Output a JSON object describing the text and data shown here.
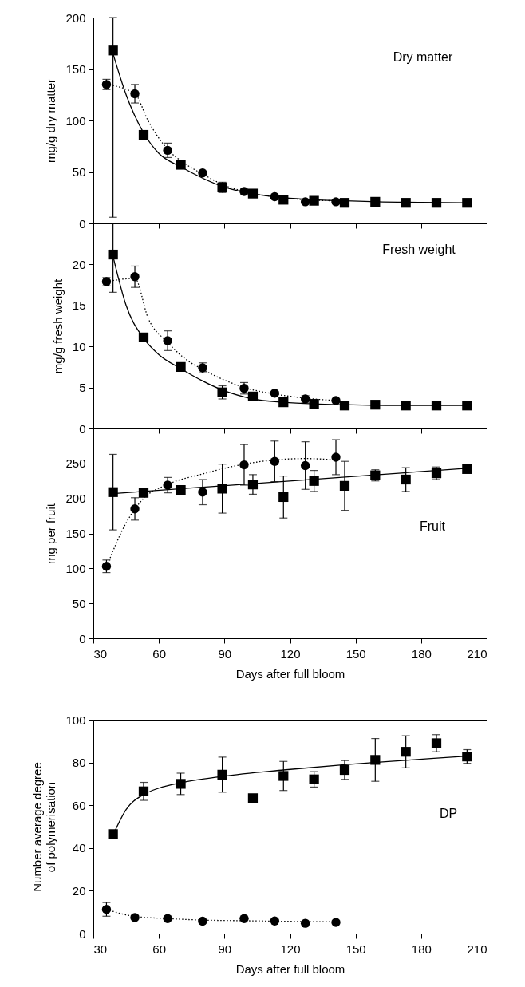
{
  "chart_data": [
    {
      "type": "scatter",
      "ylabel": "mg/g dry matter",
      "annotations": [
        "Dry matter"
      ],
      "xlim": [
        30,
        210
      ],
      "xticks": [
        30,
        60,
        90,
        120,
        150,
        180,
        210
      ],
      "ylim": [
        0,
        200
      ],
      "yticks": [
        0,
        50,
        100,
        150,
        200
      ],
      "tick_labels": "y",
      "grid": false,
      "series": [
        {
          "type": "line",
          "color": "#000000",
          "line_style": "dotted",
          "marker": "none",
          "x": [
            36,
            49,
            55,
            64,
            72,
            80,
            90,
            99,
            113,
            127,
            141
          ],
          "values": [
            135,
            126,
            100,
            72,
            58,
            48,
            37,
            31,
            26,
            23,
            22
          ]
        },
        {
          "type": "line",
          "color": "#000000",
          "line_style": "solid",
          "marker": "none",
          "x": [
            39,
            45,
            53,
            60,
            70,
            80,
            89,
            100,
            117,
            131,
            145,
            160,
            180,
            201
          ],
          "values": [
            165,
            125,
            88,
            68,
            55,
            44,
            36,
            30,
            25,
            23,
            22,
            21,
            20.5,
            20
          ]
        },
        {
          "type": "scatter",
          "color": "#000000",
          "marker": "circle",
          "x": [
            36,
            49,
            64,
            80,
            99,
            113,
            127,
            141
          ],
          "values": [
            135,
            126,
            71,
            49,
            31,
            26,
            21,
            21
          ],
          "errors": [
            5,
            9,
            7,
            null,
            3,
            null,
            null,
            null
          ]
        },
        {
          "type": "scatter",
          "color": "#000000",
          "marker": "square",
          "x": [
            39,
            53,
            70,
            89,
            103,
            117,
            131,
            145,
            159,
            173,
            187,
            201
          ],
          "values": [
            168,
            86,
            57,
            35,
            29,
            23,
            22,
            20,
            21,
            20,
            20,
            20
          ],
          "errors": [
            [
              6,
              200
            ],
            null,
            null,
            5,
            null,
            null,
            null,
            null,
            null,
            null,
            null,
            null
          ]
        }
      ]
    },
    {
      "type": "scatter",
      "ylabel": "mg/g fresh weight",
      "annotations": [
        "Fresh weight"
      ],
      "xlim": [
        30,
        210
      ],
      "xticks": [
        30,
        60,
        90,
        120,
        150,
        180,
        210
      ],
      "ylim": [
        0,
        25
      ],
      "yticks": [
        0,
        5,
        10,
        15,
        20
      ],
      "tick_labels": "y",
      "grid": false,
      "series": [
        {
          "type": "line",
          "color": "#000000",
          "line_style": "dotted",
          "marker": "none",
          "x": [
            36,
            49,
            55,
            64,
            72,
            80,
            90,
            99,
            113,
            127,
            141
          ],
          "values": [
            17.9,
            18.3,
            13.5,
            10.5,
            8.5,
            7.2,
            5.9,
            5.0,
            4.2,
            3.7,
            3.4
          ]
        },
        {
          "type": "line",
          "color": "#000000",
          "line_style": "solid",
          "marker": "none",
          "x": [
            39,
            45,
            53,
            60,
            70,
            80,
            89,
            103,
            117,
            131,
            145,
            173,
            201
          ],
          "values": [
            21,
            15,
            11,
            9,
            7.3,
            5.8,
            4.7,
            3.6,
            3.2,
            3.0,
            2.9,
            2.8,
            2.8
          ]
        },
        {
          "type": "scatter",
          "color": "#000000",
          "marker": "circle",
          "x": [
            36,
            49,
            64,
            80,
            99,
            113,
            127,
            141
          ],
          "values": [
            17.9,
            18.5,
            10.7,
            7.4,
            4.9,
            4.3,
            3.6,
            3.4
          ],
          "errors": [
            0.5,
            1.3,
            1.2,
            0.6,
            0.7,
            null,
            0.4,
            null
          ]
        },
        {
          "type": "scatter",
          "color": "#000000",
          "marker": "square",
          "x": [
            39,
            53,
            70,
            89,
            103,
            117,
            131,
            145,
            159,
            173,
            187,
            201
          ],
          "values": [
            21.2,
            11.1,
            7.5,
            4.4,
            3.9,
            3.2,
            3.0,
            2.8,
            2.9,
            2.8,
            2.8,
            2.8
          ],
          "errors": [
            [
              16.6,
              25
            ],
            null,
            null,
            0.8,
            null,
            null,
            null,
            null,
            null,
            null,
            null,
            null
          ]
        }
      ]
    },
    {
      "type": "scatter",
      "xlabel": "Days after full bloom",
      "ylabel": "mg per fruit",
      "annotations": [
        "Fruit"
      ],
      "xlim": [
        30,
        210
      ],
      "xticks": [
        30,
        60,
        90,
        120,
        150,
        180,
        210
      ],
      "ylim": [
        0,
        300
      ],
      "yticks": [
        0,
        50,
        100,
        150,
        200,
        250
      ],
      "grid": false,
      "series": [
        {
          "type": "line",
          "color": "#000000",
          "line_style": "dotted",
          "marker": "none",
          "x": [
            36,
            45,
            53,
            64,
            80,
            99,
            113,
            127,
            141
          ],
          "values": [
            102,
            165,
            200,
            220,
            235,
            249,
            255,
            257,
            255
          ]
        },
        {
          "type": "line",
          "color": "#000000",
          "line_style": "solid",
          "marker": "none",
          "x": [
            39,
            201
          ],
          "values": [
            207,
            243
          ]
        },
        {
          "type": "scatter",
          "color": "#000000",
          "marker": "circle",
          "x": [
            36,
            49,
            64,
            80,
            99,
            113,
            127,
            141
          ],
          "values": [
            103,
            185,
            219,
            209,
            248,
            253,
            247,
            259
          ],
          "errors": [
            9,
            16,
            11,
            18,
            29,
            29,
            34,
            25
          ]
        },
        {
          "type": "scatter",
          "color": "#000000",
          "marker": "square",
          "x": [
            39,
            53,
            70,
            89,
            103,
            117,
            131,
            145,
            159,
            173,
            187,
            201
          ],
          "values": [
            209,
            208,
            212,
            214,
            220,
            202,
            225,
            218,
            233,
            227,
            236,
            242
          ],
          "errors": [
            54,
            5,
            null,
            35,
            14,
            30,
            15,
            35,
            8,
            17,
            9,
            5
          ]
        }
      ]
    },
    {
      "type": "scatter",
      "xlabel": "Days after full bloom",
      "ylabel": "Number average degree of polymerisation",
      "annotations": [
        "DP"
      ],
      "xlim": [
        30,
        210
      ],
      "xticks": [
        30,
        60,
        90,
        120,
        150,
        180,
        210
      ],
      "ylim": [
        0,
        100
      ],
      "yticks": [
        0,
        20,
        40,
        60,
        80,
        100
      ],
      "grid": false,
      "series": [
        {
          "type": "line",
          "color": "#000000",
          "line_style": "dotted",
          "marker": "none",
          "x": [
            36,
            49,
            64,
            80,
            99,
            113,
            127,
            141
          ],
          "values": [
            11.3,
            8,
            7,
            6.3,
            6,
            5.8,
            5.6,
            5.5
          ]
        },
        {
          "type": "line",
          "color": "#000000",
          "line_style": "solid",
          "marker": "none",
          "x": [
            39,
            45,
            53,
            60,
            70,
            89,
            117,
            145,
            173,
            201
          ],
          "values": [
            46,
            58,
            65,
            68,
            70.5,
            73.5,
            76.5,
            79,
            81,
            83
          ]
        },
        {
          "type": "scatter",
          "color": "#000000",
          "marker": "circle",
          "x": [
            36,
            49,
            64,
            80,
            99,
            113,
            127,
            141
          ],
          "values": [
            11.3,
            7.5,
            7.0,
            5.8,
            7.0,
            5.9,
            4.8,
            5.2
          ],
          "errors": [
            3.2,
            null,
            null,
            null,
            null,
            null,
            null,
            null
          ]
        },
        {
          "type": "scatter",
          "color": "#000000",
          "marker": "square",
          "x": [
            39,
            53,
            70,
            89,
            103,
            117,
            131,
            145,
            159,
            173,
            187,
            201
          ],
          "values": [
            46.5,
            66.5,
            70,
            74.3,
            63.3,
            73.7,
            72.1,
            76.5,
            81.2,
            85,
            89,
            82.8
          ],
          "errors": [
            null,
            4.2,
            5,
            8.2,
            null,
            6.8,
            3.6,
            4.4,
            10,
            7.5,
            4,
            3.2
          ]
        }
      ]
    }
  ]
}
